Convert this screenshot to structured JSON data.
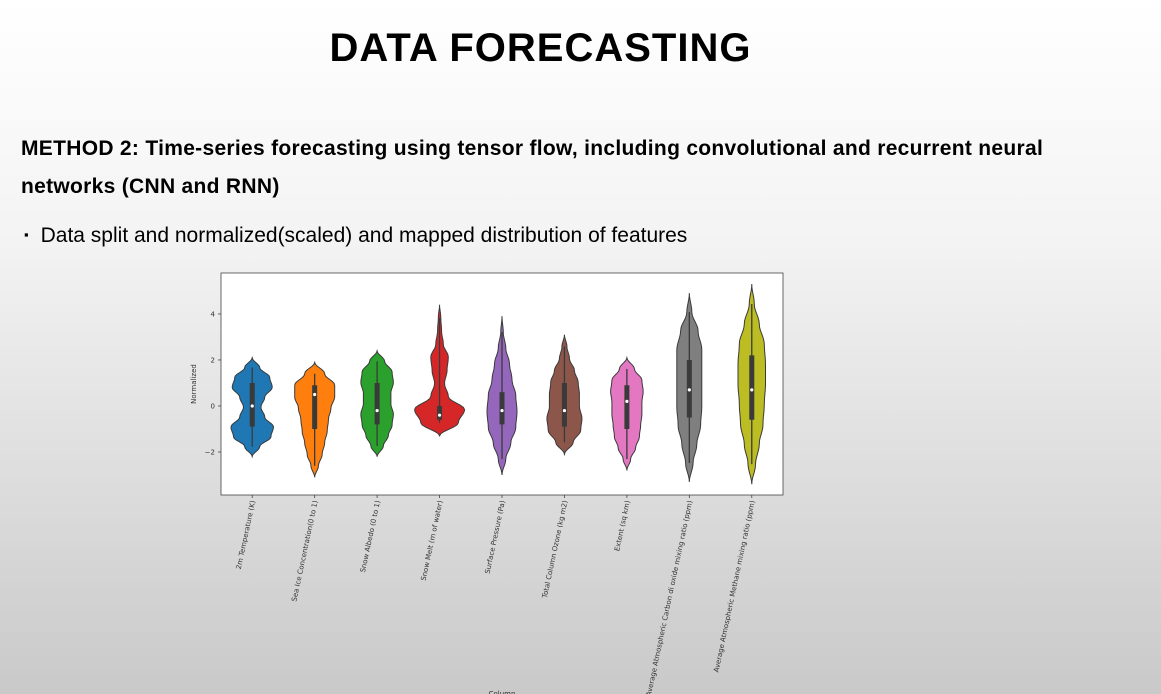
{
  "slide": {
    "title": "DATA FORECASTING",
    "method": "METHOD 2: Time-series forecasting using tensor flow, including convolutional and recurrent neural networks (CNN and RNN)",
    "bullet": "Data split and normalized(scaled) and mapped distribution of features"
  },
  "chart_data": {
    "type": "violin",
    "x_label": "Column",
    "y_label": "Normalized",
    "ylim": [
      -3.87,
      5.78
    ],
    "yticks": [
      {
        "value": -2,
        "label": "−2"
      },
      0,
      2,
      4
    ],
    "categories": [
      "2m Temperature (K)",
      "Sea Ice Concentration(0 to 1)",
      "Snow Albedo (0 to 1)",
      "Snow Melt (m of water)",
      "Surface Pressure (Pa)",
      "Total Column Ozone (kg m2)",
      "Extent (sq km)",
      "Average Atmospheric Carbon di oxide mixing ratio (ppm)",
      "Average Atmospheric Methane mixing ratio (ppm)"
    ],
    "violins": [
      {
        "color": "#1f77b4",
        "min": -2.2,
        "q1": -0.9,
        "median": 0,
        "q3": 1.0,
        "max": 2.1,
        "density": [
          0,
          0.3,
          0.75,
          0.85,
          0.5,
          0.35,
          0.5,
          0.8,
          0.7,
          0.3,
          0
        ]
      },
      {
        "color": "#ff7f0e",
        "min": -3.1,
        "q1": -1.0,
        "median": 0.5,
        "q3": 0.9,
        "max": 1.9,
        "density": [
          0,
          0.15,
          0.3,
          0.4,
          0.5,
          0.55,
          0.65,
          0.8,
          0.8,
          0.4,
          0
        ]
      },
      {
        "color": "#2ca02c",
        "min": -2.2,
        "q1": -0.8,
        "median": -0.2,
        "q3": 1.0,
        "max": 2.4,
        "density": [
          0,
          0.25,
          0.45,
          0.6,
          0.65,
          0.55,
          0.55,
          0.65,
          0.6,
          0.3,
          0
        ]
      },
      {
        "color": "#d62728",
        "min": -1.3,
        "q1": -0.6,
        "median": -0.4,
        "q3": 0.0,
        "max": 4.4,
        "density": [
          0,
          0.75,
          1.0,
          0.35,
          0.2,
          0.3,
          0.35,
          0.15,
          0.08,
          0.05,
          0
        ]
      },
      {
        "color": "#9467bd",
        "min": -3.0,
        "q1": -0.8,
        "median": -0.2,
        "q3": 0.6,
        "max": 3.9,
        "density": [
          0,
          0.15,
          0.35,
          0.55,
          0.6,
          0.55,
          0.4,
          0.3,
          0.15,
          0.05,
          0
        ]
      },
      {
        "color": "#8c564b",
        "min": -2.1,
        "q1": -0.9,
        "median": -0.2,
        "q3": 1.0,
        "max": 3.1,
        "density": [
          0,
          0.35,
          0.65,
          0.7,
          0.6,
          0.6,
          0.55,
          0.4,
          0.2,
          0.1,
          0
        ]
      },
      {
        "color": "#e377c2",
        "min": -2.8,
        "q1": -1.0,
        "median": 0.2,
        "q3": 0.9,
        "max": 2.1,
        "density": [
          0,
          0.15,
          0.35,
          0.5,
          0.55,
          0.6,
          0.6,
          0.65,
          0.6,
          0.3,
          0
        ]
      },
      {
        "color": "#7f7f7f",
        "min": -3.3,
        "q1": -0.5,
        "median": 0.7,
        "q3": 2.0,
        "max": 4.9,
        "density": [
          0,
          0.15,
          0.3,
          0.45,
          0.5,
          0.5,
          0.5,
          0.5,
          0.35,
          0.1,
          0
        ]
      },
      {
        "color": "#bcbd22",
        "min": -3.4,
        "q1": -0.6,
        "median": 0.7,
        "q3": 2.2,
        "max": 5.3,
        "density": [
          0,
          0.15,
          0.3,
          0.45,
          0.5,
          0.55,
          0.55,
          0.5,
          0.3,
          0.1,
          0
        ]
      }
    ]
  }
}
